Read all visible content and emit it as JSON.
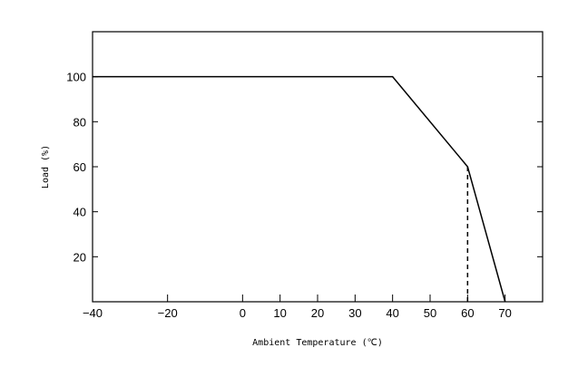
{
  "chart_data": {
    "type": "line",
    "title": "",
    "xlabel": "Ambient Temperature (℃)",
    "ylabel": "Load (%)",
    "xlim": [
      -40,
      80
    ],
    "ylim": [
      0,
      120
    ],
    "x_ticks": [
      -40,
      -20,
      0,
      10,
      20,
      30,
      40,
      50,
      60,
      70
    ],
    "y_ticks": [
      20,
      40,
      60,
      80,
      100
    ],
    "grid": false,
    "series": [
      {
        "x": [
          -40,
          40,
          60,
          70
        ],
        "y": [
          100,
          100,
          60,
          0
        ],
        "color": "#000000",
        "style": "solid"
      }
    ],
    "reference_lines": [
      {
        "x": [
          60,
          60
        ],
        "y": [
          0,
          60
        ],
        "color": "#000000",
        "style": "dashed"
      }
    ]
  }
}
